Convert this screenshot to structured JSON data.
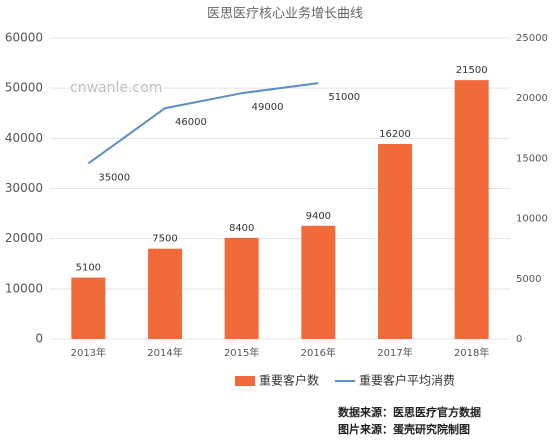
{
  "chart_data": {
    "type": "bar_line",
    "title": "医思医疗核心业务增长曲线",
    "categories": [
      "2013年",
      "2014年",
      "2015年",
      "2016年",
      "2017年",
      "2018年"
    ],
    "series": [
      {
        "name": "重要客户数",
        "color": "#f26a3a",
        "type": "bar",
        "axis": "y2",
        "values": [
          5100,
          7500,
          8400,
          9400,
          16200,
          21500
        ]
      },
      {
        "name": "重要客户平均消费",
        "color": "#5b8fc0",
        "type": "line",
        "axis": "y",
        "values": [
          35000,
          46000,
          49000,
          51000,
          null,
          null
        ]
      }
    ],
    "ylim": [
      0,
      60000
    ],
    "yticks": [
      0,
      10000,
      20000,
      30000,
      40000,
      50000,
      60000
    ],
    "y2lim": [
      0,
      25000
    ],
    "y2ticks": [
      0,
      5000,
      10000,
      15000,
      20000,
      25000
    ],
    "grid": true,
    "legend": "bottom",
    "watermark": "cnwanle.com",
    "footer": [
      "数据来源：医思医疗官方数据",
      "图片来源：蛋壳研究院制图"
    ]
  }
}
